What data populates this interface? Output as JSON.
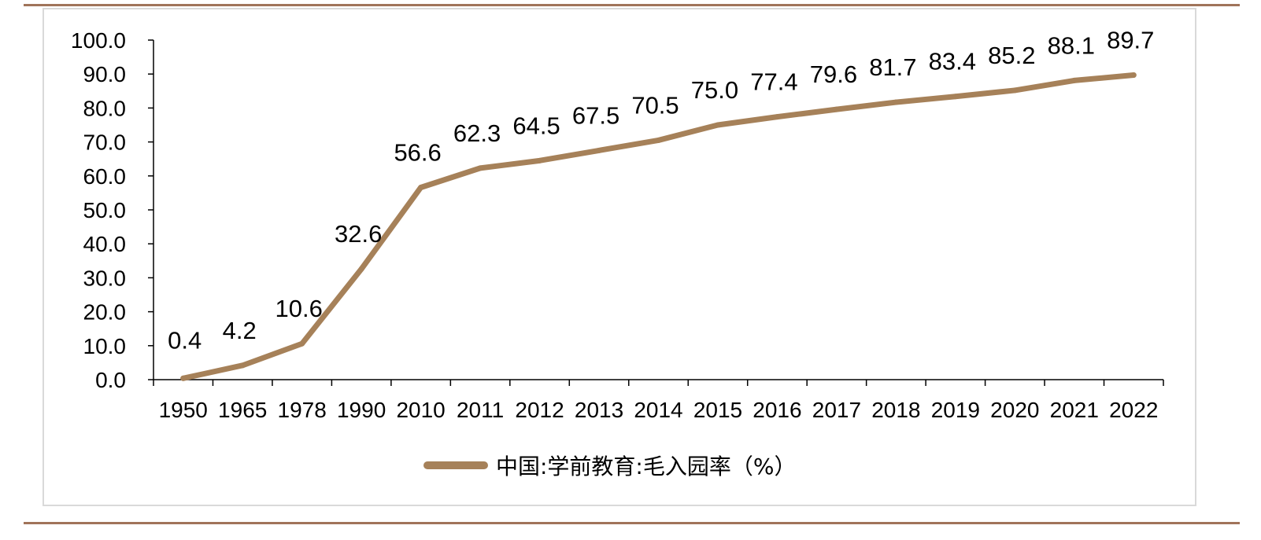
{
  "chart_data": {
    "type": "line",
    "categories": [
      "1950",
      "1965",
      "1978",
      "1990",
      "2010",
      "2011",
      "2012",
      "2013",
      "2014",
      "2015",
      "2016",
      "2017",
      "2018",
      "2019",
      "2020",
      "2021",
      "2022"
    ],
    "series": [
      {
        "name": "中国:学前教育:毛入园率（%）",
        "values": [
          0.4,
          4.2,
          10.6,
          32.6,
          56.6,
          62.3,
          64.5,
          67.5,
          70.5,
          75.0,
          77.4,
          79.6,
          81.7,
          83.4,
          85.2,
          88.1,
          89.7
        ],
        "color": "#a68159"
      }
    ],
    "ylim": [
      0,
      100
    ],
    "yticks": [
      "0.0",
      "10.0",
      "20.0",
      "30.0",
      "40.0",
      "50.0",
      "60.0",
      "70.0",
      "80.0",
      "90.0",
      "100.0"
    ],
    "data_labels": [
      "0.4",
      "4.2",
      "10.6",
      "32.6",
      "56.6",
      "62.3",
      "64.5",
      "67.5",
      "70.5",
      "75.0",
      "77.4",
      "79.6",
      "81.7",
      "83.4",
      "85.2",
      "88.1",
      "89.7"
    ],
    "grid": false,
    "legend_position": "bottom-center",
    "legend_label": "中国:学前教育:毛入园率（%）"
  },
  "colors": {
    "rule": "#a0745a",
    "frame": "#d9d9d9",
    "line": "#a68159"
  }
}
